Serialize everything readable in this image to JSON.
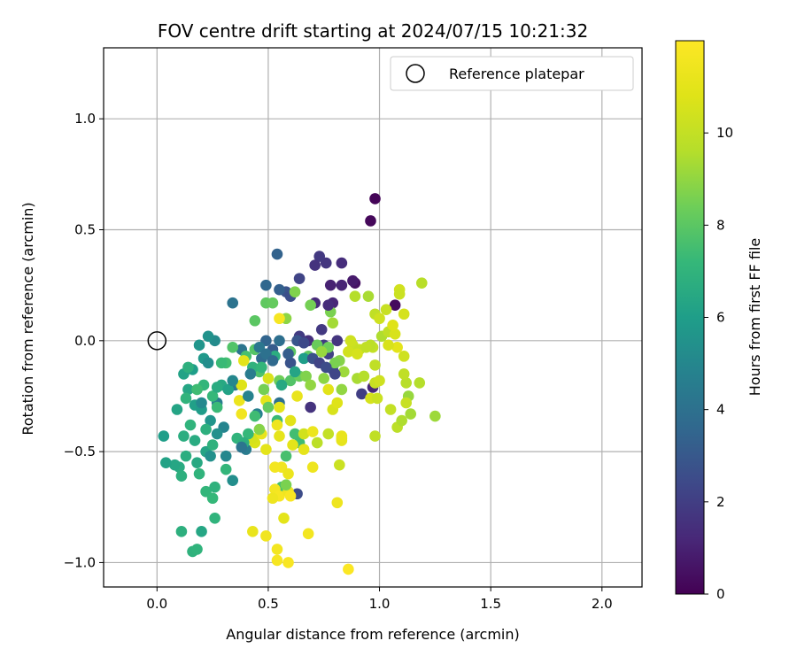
{
  "chart_data": {
    "type": "scatter",
    "title": "FOV centre drift starting at 2024/07/15 10:21:32",
    "xlabel": "Angular distance from reference (arcmin)",
    "ylabel": "Rotation from reference (arcmin)",
    "xlim": [
      -0.24,
      2.18
    ],
    "ylim": [
      -1.11,
      1.32
    ],
    "x_ticks": [
      0.0,
      0.5,
      1.0,
      1.5,
      2.0
    ],
    "x_tick_labels": [
      "0.0",
      "0.5",
      "1.0",
      "1.5",
      "2.0"
    ],
    "y_ticks": [
      -1.0,
      -0.5,
      0.0,
      0.5,
      1.0
    ],
    "y_tick_labels": [
      "−1.0",
      "−0.5",
      "0.0",
      "0.5",
      "1.0"
    ],
    "grid": true,
    "legend": {
      "placement": "top-right",
      "entries": [
        "Reference platepar"
      ]
    },
    "colorbar": {
      "label": "Hours from first FF file",
      "colormap": "viridis",
      "range": [
        0,
        12
      ],
      "ticks": [
        0,
        2,
        4,
        6,
        8,
        10
      ],
      "tick_labels": [
        "0",
        "2",
        "4",
        "6",
        "8",
        "10"
      ]
    },
    "reference_point": {
      "x": 0.0,
      "y": 0.0,
      "name": "Reference platepar"
    },
    "points": [
      {
        "x": 0.98,
        "y": 0.64,
        "h": 0.1
      },
      {
        "x": 0.96,
        "y": 0.54,
        "h": 0.2
      },
      {
        "x": 1.07,
        "y": 0.16,
        "h": 0.3
      },
      {
        "x": 0.89,
        "y": 0.26,
        "h": 0.5
      },
      {
        "x": 0.88,
        "y": 0.27,
        "h": 0.8
      },
      {
        "x": 0.78,
        "y": 0.25,
        "h": 1.0
      },
      {
        "x": 0.83,
        "y": 0.25,
        "h": 1.1
      },
      {
        "x": 0.83,
        "y": 0.35,
        "h": 1.4
      },
      {
        "x": 0.79,
        "y": 0.17,
        "h": 1.2
      },
      {
        "x": 0.76,
        "y": 0.35,
        "h": 1.7
      },
      {
        "x": 0.73,
        "y": 0.38,
        "h": 1.8
      },
      {
        "x": 0.71,
        "y": 0.34,
        "h": 1.6
      },
      {
        "x": 0.71,
        "y": 0.17,
        "h": 1.3
      },
      {
        "x": 0.64,
        "y": 0.28,
        "h": 2.2
      },
      {
        "x": 0.58,
        "y": 0.22,
        "h": 2.8
      },
      {
        "x": 0.54,
        "y": 0.39,
        "h": 3.4
      },
      {
        "x": 0.49,
        "y": 0.25,
        "h": 3.6
      },
      {
        "x": 0.55,
        "y": 0.23,
        "h": 3.3
      },
      {
        "x": 0.6,
        "y": 0.2,
        "h": 2.6
      },
      {
        "x": 0.34,
        "y": 0.17,
        "h": 4.1
      },
      {
        "x": 0.64,
        "y": 0.02,
        "h": 1.9
      },
      {
        "x": 0.68,
        "y": 0.0,
        "h": 1.5
      },
      {
        "x": 0.75,
        "y": -0.02,
        "h": 1.9
      },
      {
        "x": 0.77,
        "y": -0.06,
        "h": 2.1
      },
      {
        "x": 0.79,
        "y": -0.13,
        "h": 2.4
      },
      {
        "x": 0.92,
        "y": -0.24,
        "h": 2.0
      },
      {
        "x": 0.97,
        "y": -0.21,
        "h": 1.2
      },
      {
        "x": 0.63,
        "y": -0.69,
        "h": 2.5
      },
      {
        "x": 0.69,
        "y": -0.3,
        "h": 1.6
      },
      {
        "x": 0.6,
        "y": -0.1,
        "h": 2.8
      },
      {
        "x": 0.52,
        "y": -0.04,
        "h": 3.1
      },
      {
        "x": 0.49,
        "y": 0.0,
        "h": 3.5
      },
      {
        "x": 0.47,
        "y": -0.08,
        "h": 3.7
      },
      {
        "x": 0.38,
        "y": -0.04,
        "h": 4.2
      },
      {
        "x": 0.35,
        "y": -0.2,
        "h": 4.4
      },
      {
        "x": 0.27,
        "y": -0.28,
        "h": 4.6
      },
      {
        "x": 0.3,
        "y": -0.39,
        "h": 4.9
      },
      {
        "x": 0.31,
        "y": -0.52,
        "h": 5.0
      },
      {
        "x": 0.34,
        "y": -0.63,
        "h": 5.3
      },
      {
        "x": 0.4,
        "y": -0.49,
        "h": 4.5
      },
      {
        "x": 0.45,
        "y": -0.33,
        "h": 4.7
      },
      {
        "x": 0.55,
        "y": -0.28,
        "h": 4.0
      },
      {
        "x": 0.26,
        "y": 0.0,
        "h": 5.2
      },
      {
        "x": 0.23,
        "y": 0.02,
        "h": 5.5
      },
      {
        "x": 0.21,
        "y": -0.08,
        "h": 5.8
      },
      {
        "x": 0.16,
        "y": -0.13,
        "h": 6.0
      },
      {
        "x": 0.12,
        "y": -0.15,
        "h": 6.2
      },
      {
        "x": 0.14,
        "y": -0.22,
        "h": 6.4
      },
      {
        "x": 0.17,
        "y": -0.29,
        "h": 6.1
      },
      {
        "x": 0.2,
        "y": -0.31,
        "h": 5.9
      },
      {
        "x": 0.24,
        "y": -0.36,
        "h": 5.6
      },
      {
        "x": 0.27,
        "y": -0.42,
        "h": 5.4
      },
      {
        "x": 0.22,
        "y": -0.5,
        "h": 6.3
      },
      {
        "x": 0.18,
        "y": -0.55,
        "h": 6.5
      },
      {
        "x": 0.13,
        "y": -0.52,
        "h": 6.7
      },
      {
        "x": 0.1,
        "y": -0.57,
        "h": 6.6
      },
      {
        "x": 0.08,
        "y": -0.56,
        "h": 6.4
      },
      {
        "x": 0.04,
        "y": -0.55,
        "h": 6.2
      },
      {
        "x": 0.03,
        "y": -0.43,
        "h": 6.0
      },
      {
        "x": 0.09,
        "y": -0.31,
        "h": 6.3
      },
      {
        "x": 0.11,
        "y": -0.61,
        "h": 6.8
      },
      {
        "x": 0.19,
        "y": -0.6,
        "h": 7.0
      },
      {
        "x": 0.22,
        "y": -0.68,
        "h": 7.1
      },
      {
        "x": 0.25,
        "y": -0.71,
        "h": 7.2
      },
      {
        "x": 0.26,
        "y": -0.8,
        "h": 7.0
      },
      {
        "x": 0.26,
        "y": -0.66,
        "h": 6.9
      },
      {
        "x": 0.2,
        "y": -0.86,
        "h": 6.4
      },
      {
        "x": 0.11,
        "y": -0.86,
        "h": 6.8
      },
      {
        "x": 0.16,
        "y": -0.95,
        "h": 6.9
      },
      {
        "x": 0.18,
        "y": -0.94,
        "h": 7.0
      },
      {
        "x": 0.22,
        "y": -0.4,
        "h": 6.8
      },
      {
        "x": 0.15,
        "y": -0.38,
        "h": 7.0
      },
      {
        "x": 0.12,
        "y": -0.43,
        "h": 6.7
      },
      {
        "x": 0.17,
        "y": -0.45,
        "h": 6.6
      },
      {
        "x": 0.25,
        "y": -0.47,
        "h": 6.9
      },
      {
        "x": 0.31,
        "y": -0.58,
        "h": 7.1
      },
      {
        "x": 0.29,
        "y": -0.2,
        "h": 6.5
      },
      {
        "x": 0.25,
        "y": -0.25,
        "h": 7.2
      },
      {
        "x": 0.27,
        "y": -0.3,
        "h": 7.3
      },
      {
        "x": 0.31,
        "y": -0.1,
        "h": 7.5
      },
      {
        "x": 0.34,
        "y": -0.03,
        "h": 7.8
      },
      {
        "x": 0.4,
        "y": -0.07,
        "h": 7.6
      },
      {
        "x": 0.44,
        "y": -0.04,
        "h": 7.9
      },
      {
        "x": 0.44,
        "y": 0.09,
        "h": 8.0
      },
      {
        "x": 0.49,
        "y": 0.17,
        "h": 8.1
      },
      {
        "x": 0.52,
        "y": 0.17,
        "h": 8.2
      },
      {
        "x": 0.46,
        "y": -0.14,
        "h": 7.7
      },
      {
        "x": 0.44,
        "y": -0.34,
        "h": 7.4
      },
      {
        "x": 0.54,
        "y": -0.36,
        "h": 7.3
      },
      {
        "x": 0.62,
        "y": -0.42,
        "h": 7.5
      },
      {
        "x": 0.64,
        "y": -0.46,
        "h": 7.4
      },
      {
        "x": 0.58,
        "y": -0.52,
        "h": 7.6
      },
      {
        "x": 0.56,
        "y": -0.66,
        "h": 7.6
      },
      {
        "x": 0.6,
        "y": -0.18,
        "h": 7.8
      },
      {
        "x": 0.68,
        "y": -0.07,
        "h": 8.1
      },
      {
        "x": 0.72,
        "y": -0.02,
        "h": 8.3
      },
      {
        "x": 0.77,
        "y": -0.03,
        "h": 8.4
      },
      {
        "x": 0.78,
        "y": 0.13,
        "h": 8.6
      },
      {
        "x": 0.69,
        "y": 0.16,
        "h": 8.5
      },
      {
        "x": 0.62,
        "y": 0.22,
        "h": 8.7
      },
      {
        "x": 0.58,
        "y": 0.1,
        "h": 8.9
      },
      {
        "x": 0.79,
        "y": 0.08,
        "h": 9.3
      },
      {
        "x": 0.82,
        "y": -0.09,
        "h": 8.8
      },
      {
        "x": 0.83,
        "y": -0.22,
        "h": 9.0
      },
      {
        "x": 0.84,
        "y": -0.14,
        "h": 9.2
      },
      {
        "x": 0.89,
        "y": 0.2,
        "h": 9.6
      },
      {
        "x": 0.95,
        "y": 0.2,
        "h": 9.4
      },
      {
        "x": 0.98,
        "y": 0.12,
        "h": 9.9
      },
      {
        "x": 1.0,
        "y": 0.1,
        "h": 10.3
      },
      {
        "x": 1.03,
        "y": 0.14,
        "h": 10.1
      },
      {
        "x": 1.09,
        "y": 0.23,
        "h": 10.4
      },
      {
        "x": 1.09,
        "y": 0.21,
        "h": 10.2
      },
      {
        "x": 1.11,
        "y": 0.12,
        "h": 10.5
      },
      {
        "x": 1.19,
        "y": 0.26,
        "h": 9.7
      },
      {
        "x": 1.01,
        "y": 0.02,
        "h": 9.5
      },
      {
        "x": 1.04,
        "y": 0.04,
        "h": 9.9
      },
      {
        "x": 1.07,
        "y": 0.03,
        "h": 10.6
      },
      {
        "x": 0.97,
        "y": -0.03,
        "h": 10.0
      },
      {
        "x": 0.96,
        "y": -0.02,
        "h": 9.8
      },
      {
        "x": 0.88,
        "y": -0.02,
        "h": 10.2
      },
      {
        "x": 0.86,
        "y": -0.05,
        "h": 10.4
      },
      {
        "x": 0.9,
        "y": -0.17,
        "h": 9.4
      },
      {
        "x": 0.93,
        "y": -0.16,
        "h": 9.6
      },
      {
        "x": 0.98,
        "y": -0.11,
        "h": 9.9
      },
      {
        "x": 0.98,
        "y": -0.19,
        "h": 10.1
      },
      {
        "x": 1.0,
        "y": -0.18,
        "h": 10.3
      },
      {
        "x": 0.96,
        "y": -0.26,
        "h": 10.5
      },
      {
        "x": 0.99,
        "y": -0.26,
        "h": 10.2
      },
      {
        "x": 1.05,
        "y": -0.31,
        "h": 10.0
      },
      {
        "x": 1.08,
        "y": -0.39,
        "h": 9.8
      },
      {
        "x": 1.1,
        "y": -0.36,
        "h": 9.5
      },
      {
        "x": 1.14,
        "y": -0.33,
        "h": 9.3
      },
      {
        "x": 1.13,
        "y": -0.25,
        "h": 9.1
      },
      {
        "x": 1.12,
        "y": -0.19,
        "h": 9.7
      },
      {
        "x": 1.11,
        "y": -0.15,
        "h": 9.9
      },
      {
        "x": 1.11,
        "y": -0.07,
        "h": 10.3
      },
      {
        "x": 1.12,
        "y": -0.28,
        "h": 10.1
      },
      {
        "x": 1.18,
        "y": -0.19,
        "h": 9.6
      },
      {
        "x": 1.25,
        "y": -0.34,
        "h": 9.2
      },
      {
        "x": 0.98,
        "y": -0.43,
        "h": 9.9
      },
      {
        "x": 0.82,
        "y": -0.56,
        "h": 10.2
      },
      {
        "x": 0.83,
        "y": -0.44,
        "h": 10.5
      },
      {
        "x": 0.77,
        "y": -0.42,
        "h": 10.0
      },
      {
        "x": 0.72,
        "y": -0.46,
        "h": 9.8
      },
      {
        "x": 0.66,
        "y": -0.42,
        "h": 10.4
      },
      {
        "x": 0.79,
        "y": -0.31,
        "h": 10.6
      },
      {
        "x": 0.81,
        "y": -0.28,
        "h": 10.8
      },
      {
        "x": 0.77,
        "y": -0.22,
        "h": 10.9
      },
      {
        "x": 0.83,
        "y": -0.45,
        "h": 11.1
      },
      {
        "x": 0.83,
        "y": -0.43,
        "h": 11.2
      },
      {
        "x": 0.7,
        "y": -0.41,
        "h": 11.3
      },
      {
        "x": 0.66,
        "y": -0.49,
        "h": 11.1
      },
      {
        "x": 0.7,
        "y": -0.57,
        "h": 11.4
      },
      {
        "x": 0.61,
        "y": -0.47,
        "h": 11.0
      },
      {
        "x": 0.63,
        "y": -0.25,
        "h": 11.2
      },
      {
        "x": 0.56,
        "y": -0.57,
        "h": 11.5
      },
      {
        "x": 0.53,
        "y": -0.57,
        "h": 11.6
      },
      {
        "x": 0.59,
        "y": -0.6,
        "h": 11.3
      },
      {
        "x": 0.53,
        "y": -0.67,
        "h": 11.6
      },
      {
        "x": 0.55,
        "y": -0.7,
        "h": 11.7
      },
      {
        "x": 0.59,
        "y": -0.68,
        "h": 11.5
      },
      {
        "x": 0.6,
        "y": -0.7,
        "h": 11.8
      },
      {
        "x": 0.52,
        "y": -0.71,
        "h": 11.4
      },
      {
        "x": 0.57,
        "y": -0.8,
        "h": 11.0
      },
      {
        "x": 0.49,
        "y": -0.88,
        "h": 11.5
      },
      {
        "x": 0.43,
        "y": -0.86,
        "h": 11.2
      },
      {
        "x": 0.54,
        "y": -0.94,
        "h": 11.6
      },
      {
        "x": 0.54,
        "y": -0.99,
        "h": 11.7
      },
      {
        "x": 0.59,
        "y": -1.0,
        "h": 11.8
      },
      {
        "x": 0.68,
        "y": -0.87,
        "h": 11.6
      },
      {
        "x": 0.81,
        "y": -0.73,
        "h": 11.4
      },
      {
        "x": 0.86,
        "y": -1.03,
        "h": 11.9
      },
      {
        "x": 0.49,
        "y": -0.49,
        "h": 11.0
      },
      {
        "x": 0.44,
        "y": -0.46,
        "h": 10.7
      },
      {
        "x": 0.43,
        "y": -0.44,
        "h": 10.5
      },
      {
        "x": 0.47,
        "y": -0.42,
        "h": 11.2
      },
      {
        "x": 0.54,
        "y": -0.38,
        "h": 11.4
      },
      {
        "x": 0.55,
        "y": -0.43,
        "h": 11.1
      },
      {
        "x": 0.49,
        "y": -0.27,
        "h": 11.0
      },
      {
        "x": 0.37,
        "y": -0.27,
        "h": 11.3
      },
      {
        "x": 0.38,
        "y": -0.33,
        "h": 11.5
      },
      {
        "x": 0.38,
        "y": -0.2,
        "h": 10.8
      },
      {
        "x": 0.39,
        "y": -0.09,
        "h": 11.0
      },
      {
        "x": 0.5,
        "y": -0.17,
        "h": 10.6
      },
      {
        "x": 0.55,
        "y": 0.1,
        "h": 11.7
      },
      {
        "x": 0.55,
        "y": -0.3,
        "h": 11.0
      },
      {
        "x": 0.6,
        "y": -0.36,
        "h": 10.9
      },
      {
        "x": 0.87,
        "y": 0.0,
        "h": 10.3
      },
      {
        "x": 0.91,
        "y": -0.04,
        "h": 10.1
      },
      {
        "x": 0.94,
        "y": -0.03,
        "h": 9.9
      },
      {
        "x": 0.9,
        "y": -0.06,
        "h": 10.5
      },
      {
        "x": 1.06,
        "y": 0.07,
        "h": 10.8
      },
      {
        "x": 1.08,
        "y": -0.03,
        "h": 11.0
      },
      {
        "x": 1.04,
        "y": -0.02,
        "h": 10.6
      },
      {
        "x": 0.6,
        "y": -0.05,
        "h": 8.0
      },
      {
        "x": 0.55,
        "y": -0.18,
        "h": 8.4
      },
      {
        "x": 0.48,
        "y": -0.22,
        "h": 8.5
      },
      {
        "x": 0.5,
        "y": -0.3,
        "h": 8.2
      },
      {
        "x": 0.46,
        "y": -0.4,
        "h": 8.8
      },
      {
        "x": 0.58,
        "y": -0.65,
        "h": 8.6
      },
      {
        "x": 0.64,
        "y": -0.16,
        "h": 8.3
      },
      {
        "x": 0.67,
        "y": -0.16,
        "h": 8.7
      },
      {
        "x": 0.69,
        "y": -0.2,
        "h": 9.0
      },
      {
        "x": 0.74,
        "y": -0.05,
        "h": 9.1
      },
      {
        "x": 0.75,
        "y": -0.17,
        "h": 8.9
      },
      {
        "x": 0.8,
        "y": -0.1,
        "h": 8.6
      },
      {
        "x": 0.36,
        "y": -0.44,
        "h": 7.0
      },
      {
        "x": 0.41,
        "y": -0.42,
        "h": 7.2
      },
      {
        "x": 0.39,
        "y": -0.46,
        "h": 6.8
      },
      {
        "x": 0.43,
        "y": -0.12,
        "h": 6.9
      },
      {
        "x": 0.47,
        "y": -0.12,
        "h": 7.1
      },
      {
        "x": 0.53,
        "y": -0.07,
        "h": 6.7
      },
      {
        "x": 0.56,
        "y": -0.2,
        "h": 6.5
      },
      {
        "x": 0.62,
        "y": -0.14,
        "h": 6.3
      },
      {
        "x": 0.66,
        "y": -0.08,
        "h": 6.0
      },
      {
        "x": 0.27,
        "y": -0.21,
        "h": 6.6
      },
      {
        "x": 0.32,
        "y": -0.22,
        "h": 6.2
      },
      {
        "x": 0.29,
        "y": -0.1,
        "h": 7.3
      },
      {
        "x": 0.21,
        "y": -0.2,
        "h": 7.1
      },
      {
        "x": 0.18,
        "y": -0.22,
        "h": 7.4
      },
      {
        "x": 0.13,
        "y": -0.26,
        "h": 7.0
      },
      {
        "x": 0.14,
        "y": -0.12,
        "h": 6.8
      },
      {
        "x": 0.46,
        "y": -0.03,
        "h": 4.3
      },
      {
        "x": 0.49,
        "y": -0.06,
        "h": 4.0
      },
      {
        "x": 0.52,
        "y": -0.09,
        "h": 3.7
      },
      {
        "x": 0.55,
        "y": 0.0,
        "h": 3.9
      },
      {
        "x": 0.59,
        "y": -0.06,
        "h": 3.2
      },
      {
        "x": 0.63,
        "y": 0.0,
        "h": 2.9
      },
      {
        "x": 0.66,
        "y": -0.01,
        "h": 2.4
      },
      {
        "x": 0.7,
        "y": -0.08,
        "h": 2.7
      },
      {
        "x": 0.73,
        "y": -0.1,
        "h": 2.2
      },
      {
        "x": 0.76,
        "y": -0.12,
        "h": 2.5
      },
      {
        "x": 0.8,
        "y": -0.15,
        "h": 2.3
      },
      {
        "x": 0.74,
        "y": 0.05,
        "h": 1.8
      },
      {
        "x": 0.81,
        "y": 0.0,
        "h": 1.7
      },
      {
        "x": 0.77,
        "y": 0.16,
        "h": 1.4
      },
      {
        "x": 0.41,
        "y": -0.25,
        "h": 4.8
      },
      {
        "x": 0.38,
        "y": -0.48,
        "h": 4.2
      },
      {
        "x": 0.42,
        "y": -0.15,
        "h": 4.5
      },
      {
        "x": 0.23,
        "y": -0.1,
        "h": 5.3
      },
      {
        "x": 0.19,
        "y": -0.02,
        "h": 5.6
      },
      {
        "x": 0.2,
        "y": -0.28,
        "h": 5.1
      },
      {
        "x": 0.24,
        "y": -0.52,
        "h": 5.4
      },
      {
        "x": 0.34,
        "y": -0.18,
        "h": 5.0
      }
    ]
  }
}
